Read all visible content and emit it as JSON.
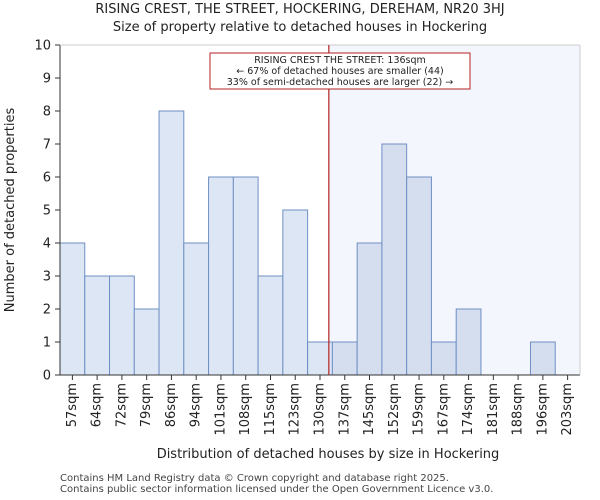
{
  "chart_data": {
    "type": "bar",
    "title": "RISING CREST, THE STREET, HOCKERING, DEREHAM, NR20 3HJ",
    "subtitle": "Size of property relative to detached houses in Hockering",
    "xlabel": "Distribution of detached houses by size in Hockering",
    "ylabel": "Number of detached properties",
    "categories": [
      "57sqm",
      "64sqm",
      "72sqm",
      "79sqm",
      "86sqm",
      "94sqm",
      "101sqm",
      "108sqm",
      "115sqm",
      "123sqm",
      "130sqm",
      "137sqm",
      "145sqm",
      "152sqm",
      "159sqm",
      "167sqm",
      "174sqm",
      "181sqm",
      "188sqm",
      "196sqm",
      "203sqm"
    ],
    "values": [
      4,
      3,
      3,
      2,
      8,
      4,
      6,
      6,
      3,
      5,
      1,
      1,
      4,
      7,
      6,
      1,
      2,
      0,
      0,
      1,
      0
    ],
    "ylim": [
      0,
      10
    ],
    "yticks": [
      0,
      1,
      2,
      3,
      4,
      5,
      6,
      7,
      8,
      9,
      10
    ],
    "grid": false,
    "marker": {
      "value_sqm": 136,
      "color": "#b22222"
    },
    "annotation": {
      "lines": [
        "RISING CREST THE STREET: 136sqm",
        "← 67% of detached houses are smaller (44)",
        "33% of semi-detached houses are larger (22) →"
      ]
    },
    "colors": {
      "bar_left": "#dce6f4",
      "bar_right": "#d4deef",
      "bar_edge": "#6f8fc4",
      "shade_right": "#f4f6fd"
    }
  },
  "footer": {
    "line1": "Contains HM Land Registry data © Crown copyright and database right 2025.",
    "line2": "Contains public sector information licensed under the Open Government Licence v3.0."
  }
}
